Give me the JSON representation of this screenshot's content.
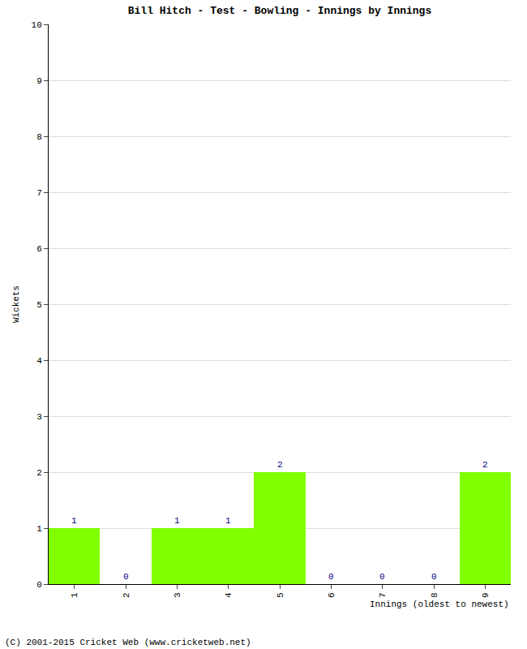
{
  "chart_data": {
    "type": "bar",
    "title": "Bill Hitch - Test - Bowling - Innings by Innings",
    "x_label": "Innings (oldest to newest)",
    "y_label": "Wickets",
    "categories": [
      "1",
      "2",
      "3",
      "4",
      "5",
      "6",
      "7",
      "8",
      "9"
    ],
    "values": [
      1,
      0,
      1,
      1,
      2,
      0,
      0,
      0,
      2
    ],
    "color": "#80ff00",
    "ylim": [
      0,
      10
    ],
    "yticks": [
      0,
      1,
      2,
      3,
      4,
      5,
      6,
      7,
      8,
      9,
      10
    ],
    "grid": true,
    "data_labels": true,
    "annotations": [
      "(C) 2001-2015 Cricket Web (www.cricketweb.net)"
    ]
  }
}
